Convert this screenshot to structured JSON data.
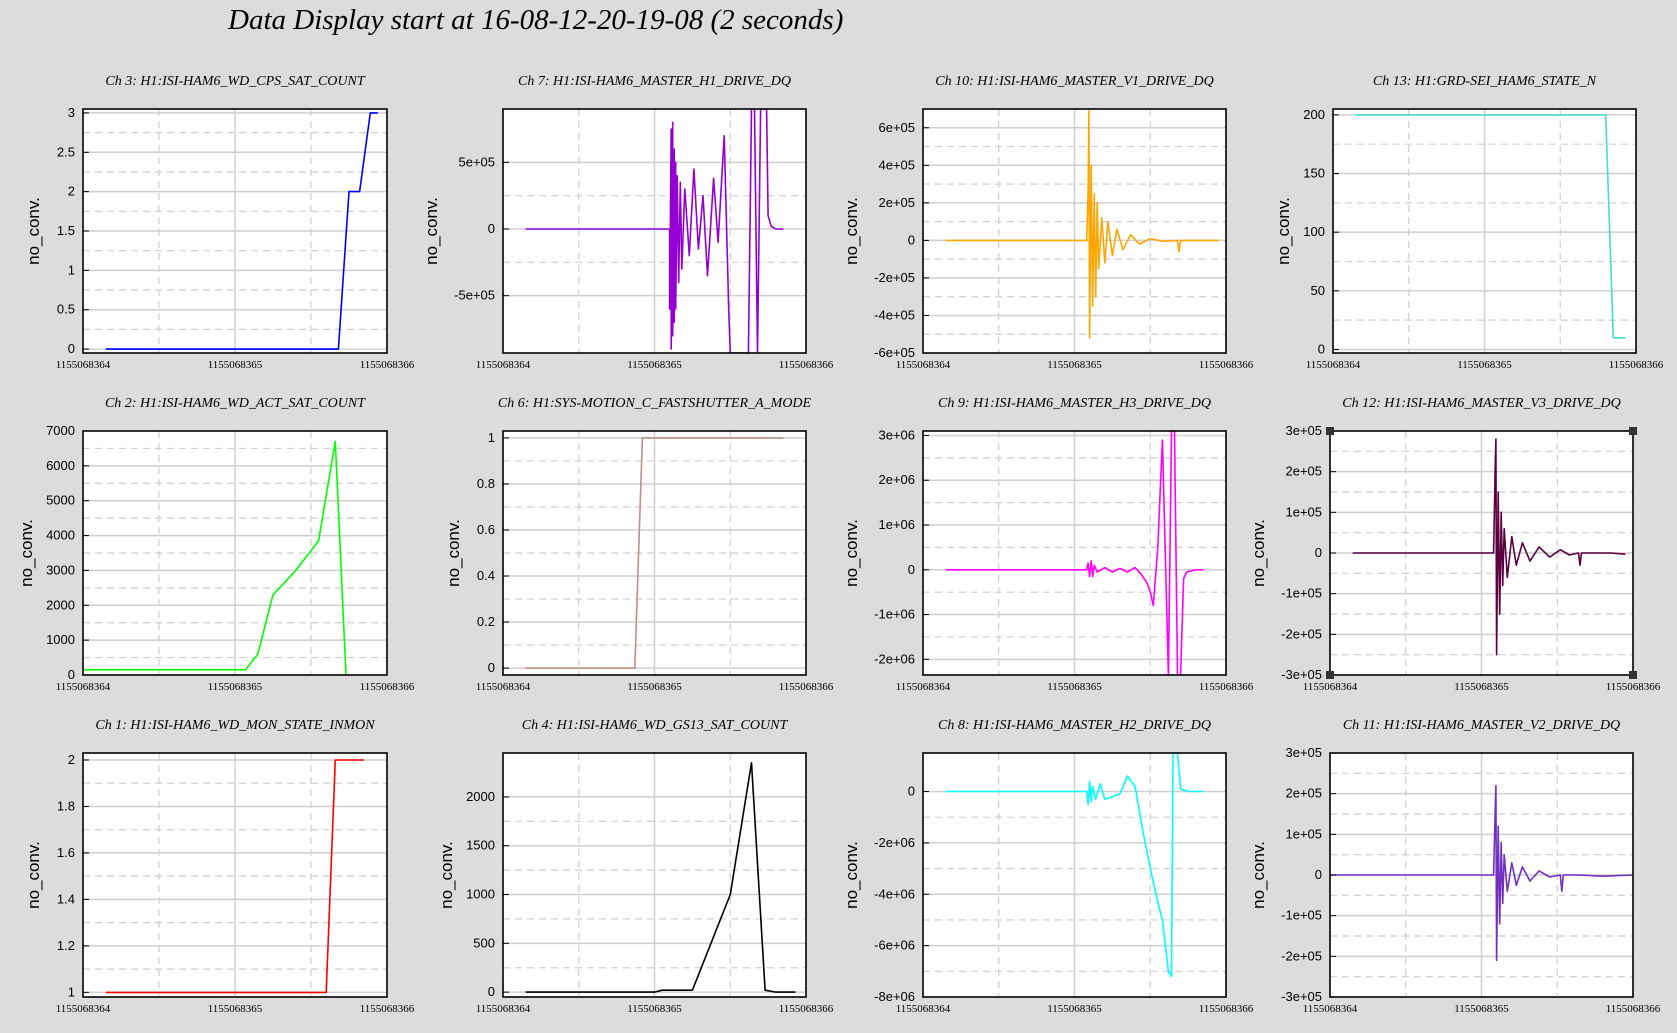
{
  "window": {
    "title": "Data Display start at 16-08-12-20-19-08 (2 seconds)"
  },
  "chart_data": [
    {
      "type": "line",
      "title": "Ch 3: H1:ISI-HAM6_WD_CPS_SAT_COUNT",
      "ylabel": "no_conv.",
      "color": "#0000ff",
      "xlim": [
        1155068364,
        1155068366
      ],
      "xticks": [
        "1155068364",
        "1155068365",
        "1155068366"
      ],
      "ylim": [
        -0.05,
        3.05
      ],
      "yticks": [
        0,
        0.5,
        1,
        1.5,
        2,
        2.5,
        3
      ],
      "ytick_labels": [
        "0",
        "0.5",
        "1",
        "1.5",
        "2",
        "2.5",
        "3"
      ],
      "series": [
        {
          "x": [
            1155068364.15,
            1155068365.6,
            1155068365.68,
            1155068365.75,
            1155068365.82,
            1155068365.89,
            1155068365.94
          ],
          "y": [
            0,
            0,
            0,
            2,
            2,
            3,
            3
          ]
        }
      ]
    },
    {
      "type": "line",
      "title": "Ch 7: H1:ISI-HAM6_MASTER_H1_DRIVE_DQ",
      "ylabel": "no_conv.",
      "color": "#9400d3",
      "xlim": [
        1155068364,
        1155068366
      ],
      "xticks": [
        "1155068364",
        "1155068365",
        "1155068366"
      ],
      "ylim": [
        -930000,
        900000
      ],
      "yticks": [
        -500000,
        0,
        500000
      ],
      "ytick_labels": [
        "-5e+05",
        "0",
        "5e+05"
      ],
      "series": [
        {
          "x": [
            1155068364.15,
            1155068365.1,
            1155068365.1,
            1155068365.11,
            1155068365.11,
            1155068365.12,
            1155068365.12,
            1155068365.13,
            1155068365.13,
            1155068365.14,
            1155068365.14,
            1155068365.15,
            1155068365.16,
            1155068365.17,
            1155068365.18,
            1155068365.2,
            1155068365.23,
            1155068365.26,
            1155068365.29,
            1155068365.32,
            1155068365.35,
            1155068365.39,
            1155068365.42,
            1155068365.46,
            1155068365.49,
            1155068365.5,
            1155068365.52,
            1155068365.55,
            1155068365.58,
            1155068365.62,
            1155068365.64,
            1155068365.66,
            1155068365.68,
            1155068365.7,
            1155068365.72,
            1155068365.74,
            1155068365.75,
            1155068365.77,
            1155068365.8,
            1155068365.85
          ],
          "y": [
            0,
            0,
            -600000,
            750000,
            -900000,
            800000,
            -800000,
            600000,
            -700000,
            500000,
            -600000,
            400000,
            -400000,
            350000,
            -300000,
            300000,
            -200000,
            450000,
            -150000,
            250000,
            -350000,
            380000,
            -100000,
            700000,
            -600000,
            -930000,
            -930000,
            -930000,
            -930000,
            -930000,
            900000,
            900000,
            -930000,
            900000,
            900000,
            900000,
            100000,
            20000,
            0,
            0
          ]
        }
      ]
    },
    {
      "type": "line",
      "title": "Ch 10: H1:ISI-HAM6_MASTER_V1_DRIVE_DQ",
      "ylabel": "no_conv.",
      "color": "#ffa500",
      "xlim": [
        1155068364,
        1155068366
      ],
      "xticks": [
        "1155068364",
        "1155068365",
        "1155068366"
      ],
      "ylim": [
        -600000,
        700000
      ],
      "yticks": [
        -600000,
        -400000,
        -200000,
        0,
        200000,
        400000,
        600000
      ],
      "ytick_labels": [
        "-6e+05",
        "-4e+05",
        "-2e+05",
        "0",
        "2e+05",
        "4e+05",
        "6e+05"
      ],
      "series": [
        {
          "x": [
            1155068364.15,
            1155068365.08,
            1155068365.09,
            1155068365.095,
            1155068365.1,
            1155068365.11,
            1155068365.12,
            1155068365.13,
            1155068365.14,
            1155068365.15,
            1155068365.16,
            1155068365.18,
            1155068365.2,
            1155068365.22,
            1155068365.25,
            1155068365.28,
            1155068365.32,
            1155068365.37,
            1155068365.43,
            1155068365.5,
            1155068365.58,
            1155068365.68,
            1155068365.69,
            1155068365.7,
            1155068365.85,
            1155068365.95
          ],
          "y": [
            0,
            0,
            250000,
            690000,
            -520000,
            400000,
            -350000,
            250000,
            -300000,
            200000,
            -150000,
            120000,
            -120000,
            100000,
            -80000,
            60000,
            -50000,
            30000,
            -20000,
            10000,
            -5000,
            0,
            -60000,
            0,
            0,
            0
          ]
        }
      ]
    },
    {
      "type": "line",
      "title": "Ch 13: H1:GRD-SEI_HAM6_STATE_N",
      "ylabel": "no_conv.",
      "color": "#40e0d0",
      "xlim": [
        1155068364,
        1155068366
      ],
      "xticks": [
        "1155068364",
        "1155068365",
        "1155068366"
      ],
      "ylim": [
        -3,
        205
      ],
      "yticks": [
        0,
        50,
        100,
        150,
        200
      ],
      "ytick_labels": [
        "0",
        "50",
        "100",
        "150",
        "200"
      ],
      "series": [
        {
          "x": [
            1155068364.15,
            1155068365.8,
            1155068365.85,
            1155068365.87,
            1155068365.93
          ],
          "y": [
            200,
            200,
            10,
            10,
            10
          ]
        }
      ]
    },
    {
      "type": "line",
      "title": "Ch 2: H1:ISI-HAM6_WD_ACT_SAT_COUNT",
      "ylabel": "no_conv.",
      "color": "#00ff00",
      "xlim": [
        1155068364,
        1155068366
      ],
      "xticks": [
        "1155068364",
        "1155068365",
        "1155068366"
      ],
      "ylim": [
        0,
        7000
      ],
      "yticks": [
        0,
        1000,
        2000,
        3000,
        4000,
        5000,
        6000,
        7000
      ],
      "ytick_labels": [
        "0",
        "1000",
        "2000",
        "3000",
        "4000",
        "5000",
        "6000",
        "7000"
      ],
      "series": [
        {
          "x": [
            1155068364,
            1155068365.07,
            1155068365.15,
            1155068365.25,
            1155068365.4,
            1155068365.55,
            1155068365.66,
            1155068365.73
          ],
          "y": [
            150,
            150,
            600,
            2300,
            3000,
            3850,
            6700,
            0
          ]
        }
      ]
    },
    {
      "type": "line",
      "title": "Ch 6: H1:SYS-MOTION_C_FASTSHUTTER_A_MODE",
      "ylabel": "no_conv.",
      "color": "#bc8f8f",
      "xlim": [
        1155068364,
        1155068366
      ],
      "xticks": [
        "1155068364",
        "1155068365",
        "1155068366"
      ],
      "ylim": [
        -0.03,
        1.03
      ],
      "yticks": [
        0,
        0.2,
        0.4,
        0.6,
        0.8,
        1
      ],
      "ytick_labels": [
        "0",
        "0.2",
        "0.4",
        "0.6",
        "0.8",
        "1"
      ],
      "series": [
        {
          "x": [
            1155068364.15,
            1155068364.87,
            1155068364.92,
            1155068365.85
          ],
          "y": [
            0,
            0,
            1,
            1
          ]
        }
      ]
    },
    {
      "type": "line",
      "title": "Ch 9: H1:ISI-HAM6_MASTER_H3_DRIVE_DQ",
      "ylabel": "no_conv.",
      "color": "#ff00ff",
      "xlim": [
        1155068364,
        1155068366
      ],
      "xticks": [
        "1155068364",
        "1155068365",
        "1155068366"
      ],
      "ylim": [
        -2350000,
        3100000
      ],
      "yticks": [
        -2000000,
        -1000000,
        0,
        1000000,
        2000000,
        3000000
      ],
      "ytick_labels": [
        "-2e+06",
        "-1e+06",
        "0",
        "1e+06",
        "2e+06",
        "3e+06"
      ],
      "series": [
        {
          "x": [
            1155068364.15,
            1155068365.08,
            1155068365.09,
            1155068365.1,
            1155068365.11,
            1155068365.12,
            1155068365.13,
            1155068365.15,
            1155068365.2,
            1155068365.25,
            1155068365.3,
            1155068365.35,
            1155068365.4,
            1155068365.44,
            1155068365.48,
            1155068365.5,
            1155068365.52,
            1155068365.55,
            1155068365.58,
            1155068365.62,
            1155068365.64,
            1155068365.66,
            1155068365.68,
            1155068365.7,
            1155068365.72,
            1155068365.74,
            1155068365.8,
            1155068365.85
          ],
          "y": [
            0,
            0,
            150000,
            -150000,
            200000,
            -150000,
            100000,
            -50000,
            50000,
            -50000,
            30000,
            -50000,
            50000,
            -100000,
            -300000,
            -500000,
            -800000,
            500000,
            2900000,
            -2350000,
            3100000,
            3100000,
            -2350000,
            -2350000,
            -200000,
            -50000,
            0,
            0
          ]
        }
      ]
    },
    {
      "type": "line",
      "title": "Ch 12: H1:ISI-HAM6_MASTER_V3_DRIVE_DQ",
      "ylabel": "no_conv.",
      "color": "#5a0040",
      "xlim": [
        1155068364,
        1155068366
      ],
      "xticks": [
        "1155068364",
        "1155068365",
        "1155068366"
      ],
      "ylim": [
        -300000,
        300000
      ],
      "yticks": [
        -300000,
        -200000,
        -100000,
        0,
        100000,
        200000,
        300000
      ],
      "ytick_labels": [
        "-3e+05",
        "-2e+05",
        "-1e+05",
        "0",
        "1e+05",
        "2e+05",
        "3e+05"
      ],
      "series": [
        {
          "x": [
            1155068364.15,
            1155068365.08,
            1155068365.09,
            1155068365.095,
            1155068365.1,
            1155068365.11,
            1155068365.12,
            1155068365.13,
            1155068365.14,
            1155068365.15,
            1155068365.17,
            1155068365.2,
            1155068365.23,
            1155068365.27,
            1155068365.32,
            1155068365.38,
            1155068365.45,
            1155068365.52,
            1155068365.58,
            1155068365.64,
            1155068365.65,
            1155068365.66,
            1155068365.85,
            1155068365.95
          ],
          "y": [
            0,
            0,
            200000,
            280000,
            -250000,
            150000,
            -150000,
            100000,
            -80000,
            60000,
            -60000,
            40000,
            -30000,
            25000,
            -20000,
            15000,
            -10000,
            8000,
            -5000,
            0,
            -30000,
            0,
            0,
            -3000
          ]
        }
      ]
    },
    {
      "type": "line",
      "title": "Ch 1: H1:ISI-HAM6_WD_MON_STATE_INMON",
      "ylabel": "no_conv.",
      "color": "#ff0000",
      "xlim": [
        1155068364,
        1155068366
      ],
      "xticks": [
        "1155068364",
        "1155068365",
        "1155068366"
      ],
      "ylim": [
        0.98,
        2.03
      ],
      "yticks": [
        1,
        1.2,
        1.4,
        1.6,
        1.8,
        2
      ],
      "ytick_labels": [
        "1",
        "1.2",
        "1.4",
        "1.6",
        "1.8",
        "2"
      ],
      "series": [
        {
          "x": [
            1155068364.15,
            1155068365.6,
            1155068365.66,
            1155068365.85
          ],
          "y": [
            1,
            1,
            2,
            2
          ]
        }
      ]
    },
    {
      "type": "line",
      "title": "Ch 4: H1:ISI-HAM6_WD_GS13_SAT_COUNT",
      "ylabel": "no_conv.",
      "color": "#000000",
      "xlim": [
        1155068364,
        1155068366
      ],
      "xticks": [
        "1155068364",
        "1155068365",
        "1155068366"
      ],
      "ylim": [
        -50,
        2450
      ],
      "yticks": [
        0,
        500,
        1000,
        1500,
        2000
      ],
      "ytick_labels": [
        "0",
        "500",
        "1000",
        "1500",
        "2000"
      ],
      "series": [
        {
          "x": [
            1155068364.15,
            1155068365.0,
            1155068365.05,
            1155068365.25,
            1155068365.5,
            1155068365.64,
            1155068365.73,
            1155068365.8,
            1155068365.93
          ],
          "y": [
            0,
            0,
            20,
            20,
            1000,
            2350,
            20,
            0,
            0
          ]
        }
      ]
    },
    {
      "type": "line",
      "title": "Ch 8: H1:ISI-HAM6_MASTER_H2_DRIVE_DQ",
      "ylabel": "no_conv.",
      "color": "#00ffff",
      "xlim": [
        1155068364,
        1155068366
      ],
      "xticks": [
        "1155068364",
        "1155068365",
        "1155068366"
      ],
      "ylim": [
        -8000000,
        1500000
      ],
      "yticks": [
        -8000000,
        -6000000,
        -4000000,
        -2000000,
        0
      ],
      "ytick_labels": [
        "-8e+06",
        "-6e+06",
        "-4e+06",
        "-2e+06",
        "0"
      ],
      "series": [
        {
          "x": [
            1155068364.15,
            1155068365.08,
            1155068365.09,
            1155068365.1,
            1155068365.11,
            1155068365.12,
            1155068365.14,
            1155068365.17,
            1155068365.2,
            1155068365.25,
            1155068365.3,
            1155068365.35,
            1155068365.4,
            1155068365.45,
            1155068365.5,
            1155068365.55,
            1155068365.58,
            1155068365.6,
            1155068365.62,
            1155068365.64,
            1155068365.65,
            1155068365.68,
            1155068365.7,
            1155068365.75,
            1155068365.85
          ],
          "y": [
            0,
            0,
            -500000,
            400000,
            -400000,
            200000,
            -300000,
            300000,
            -300000,
            -200000,
            -100000,
            600000,
            200000,
            -1500000,
            -3000000,
            -4300000,
            -5000000,
            -6000000,
            -7000000,
            -7200000,
            1500000,
            1500000,
            100000,
            0,
            0
          ]
        }
      ]
    },
    {
      "type": "line",
      "title": "Ch 11: H1:ISI-HAM6_MASTER_V2_DRIVE_DQ",
      "ylabel": "no_conv.",
      "color": "#7030c0",
      "xlim": [
        1155068364,
        1155068366
      ],
      "xticks": [
        "1155068364",
        "1155068365",
        "1155068366"
      ],
      "ylim": [
        -300000,
        300000
      ],
      "yticks": [
        -300000,
        -200000,
        -100000,
        0,
        100000,
        200000,
        300000
      ],
      "ytick_labels": [
        "-3e+05",
        "-2e+05",
        "-1e+05",
        "0",
        "1e+05",
        "2e+05",
        "3e+05"
      ],
      "series": [
        {
          "x": [
            1155068364.0,
            1155068365.08,
            1155068365.09,
            1155068365.095,
            1155068365.1,
            1155068365.11,
            1155068365.12,
            1155068365.13,
            1155068365.14,
            1155068365.15,
            1155068365.17,
            1155068365.2,
            1155068365.23,
            1155068365.27,
            1155068365.32,
            1155068365.38,
            1155068365.45,
            1155068365.52,
            1155068365.53,
            1155068365.54,
            1155068365.64,
            1155068365.8,
            1155068366.0
          ],
          "y": [
            0,
            0,
            150000,
            220000,
            -210000,
            120000,
            -120000,
            80000,
            -70000,
            50000,
            -40000,
            30000,
            -25000,
            20000,
            -15000,
            10000,
            -5000,
            0,
            -40000,
            0,
            0,
            -3000,
            0
          ]
        }
      ]
    }
  ]
}
